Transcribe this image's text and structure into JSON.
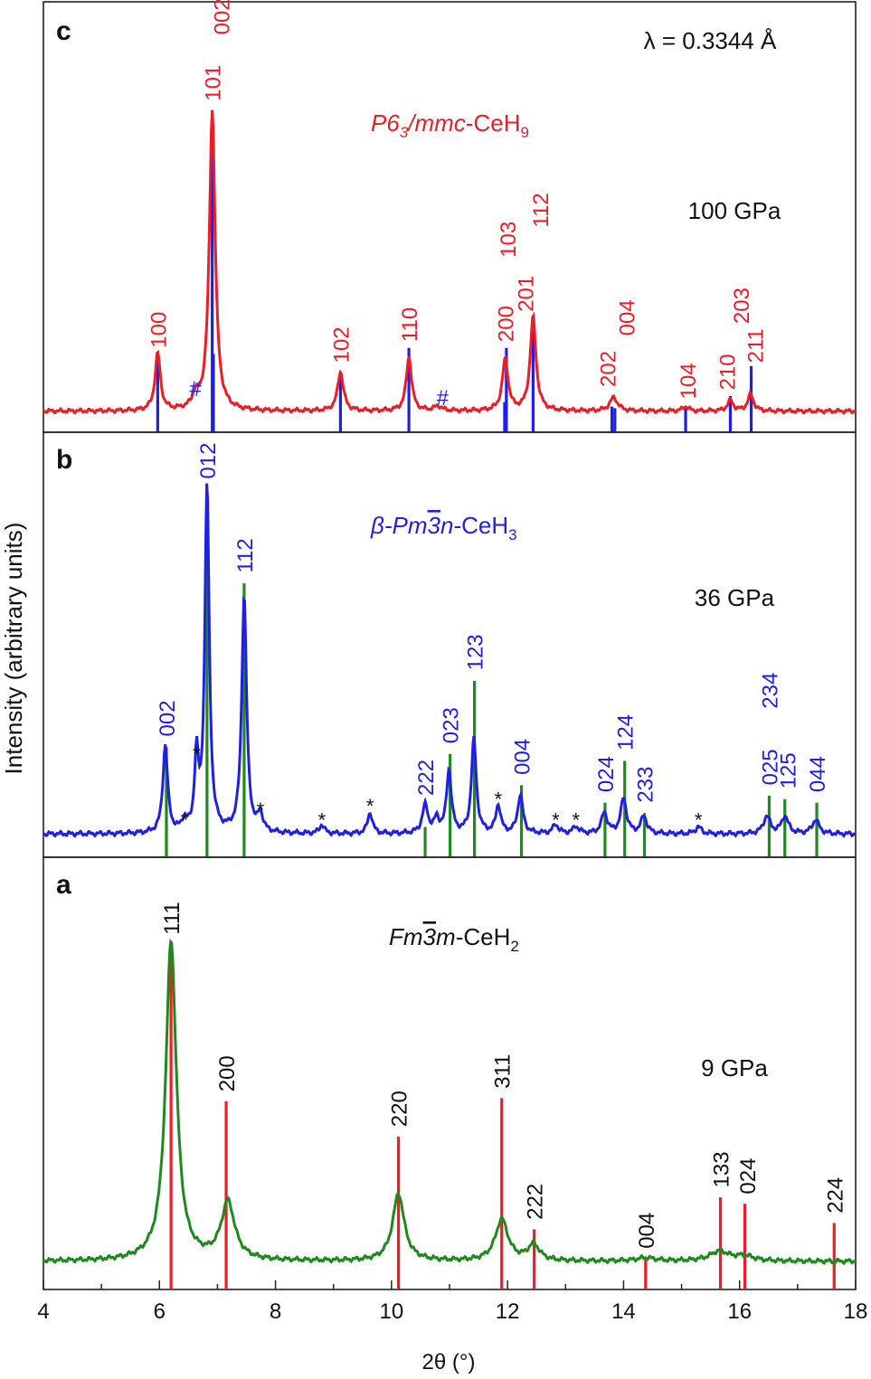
{
  "chart_data": {
    "type": "line",
    "xlabel": "2θ (°)",
    "ylabel": "Intensity (arbitrary units)",
    "xlim": [
      4,
      18
    ],
    "xticks": [
      "4",
      "6",
      "8",
      "10",
      "12",
      "14",
      "16",
      "18"
    ],
    "wavelength_label": "λ = 0.3344 Å",
    "colors": {
      "red": "#ee1c24",
      "blue": "#1f1fe6",
      "green": "#1e8a1e",
      "black": "#111111"
    },
    "panels": [
      {
        "id": "c",
        "panel_label": "c",
        "phase_label": {
          "pre": "P6",
          "sub": "3",
          "post": "/mmc",
          "tail": "-CeH",
          "tail_sub": "9"
        },
        "phase_color": "#ee1c24",
        "pressure": "100 GPa",
        "curve_color": "#ee1c24",
        "stick_color": "#1f1fe6",
        "hkl_color": "#ee1c24",
        "ylim": [
          0,
          1.0
        ],
        "baseline": 0.01,
        "peaks": [
          {
            "x": 5.97,
            "h": 0.19,
            "w": 0.055
          },
          {
            "x": 6.62,
            "h": 0.04,
            "w": 0.06
          },
          {
            "x": 6.91,
            "h": 1.0,
            "w": 0.06
          },
          {
            "x": 9.12,
            "h": 0.13,
            "w": 0.06
          },
          {
            "x": 10.3,
            "h": 0.18,
            "w": 0.055
          },
          {
            "x": 10.8,
            "h": 0.015,
            "w": 0.08
          },
          {
            "x": 11.96,
            "h": 0.17,
            "w": 0.06
          },
          {
            "x": 12.44,
            "h": 0.31,
            "w": 0.06
          },
          {
            "x": 13.83,
            "h": 0.045,
            "w": 0.08
          },
          {
            "x": 15.07,
            "h": 0.015,
            "w": 0.06
          },
          {
            "x": 15.84,
            "h": 0.035,
            "w": 0.06
          },
          {
            "x": 16.19,
            "h": 0.055,
            "w": 0.06
          }
        ],
        "sticks": [
          {
            "x": 5.97,
            "h": 0.19
          },
          {
            "x": 6.91,
            "h": 1.0
          },
          {
            "x": 6.93,
            "h": 0.2
          },
          {
            "x": 9.12,
            "h": 0.14
          },
          {
            "x": 10.3,
            "h": 0.22
          },
          {
            "x": 11.95,
            "h": 0.04
          },
          {
            "x": 11.98,
            "h": 0.22
          },
          {
            "x": 12.44,
            "h": 0.28
          },
          {
            "x": 13.8,
            "h": 0.025
          },
          {
            "x": 13.85,
            "h": 0.02
          },
          {
            "x": 15.07,
            "h": 0.025
          },
          {
            "x": 15.84,
            "h": 0.06
          },
          {
            "x": 16.2,
            "h": 0.16
          }
        ],
        "hkl": [
          {
            "text": "100",
            "x": 5.97,
            "y": 0.22
          },
          {
            "text": "101",
            "x": 6.91,
            "y": 1.04
          },
          {
            "text": "002",
            "x": 7.06,
            "y": 1.26
          },
          {
            "text": "102",
            "x": 9.12,
            "y": 0.17
          },
          {
            "text": "110",
            "x": 10.3,
            "y": 0.24
          },
          {
            "text": "200",
            "x": 11.96,
            "y": 0.24
          },
          {
            "text": "103",
            "x": 12.0,
            "y": 0.52
          },
          {
            "text": "201",
            "x": 12.3,
            "y": 0.34
          },
          {
            "text": "112",
            "x": 12.56,
            "y": 0.62
          },
          {
            "text": "202",
            "x": 13.72,
            "y": 0.09
          },
          {
            "text": "004",
            "x": 14.05,
            "y": 0.26
          },
          {
            "text": "104",
            "x": 15.1,
            "y": 0.05
          },
          {
            "text": "210",
            "x": 15.78,
            "y": 0.08
          },
          {
            "text": "203",
            "x": 16.02,
            "y": 0.3
          },
          {
            "text": "211",
            "x": 16.26,
            "y": 0.17
          }
        ],
        "impurity": [
          {
            "text": "#",
            "x": 6.62,
            "y": 0.06
          },
          {
            "text": "#",
            "x": 10.88,
            "y": 0.03
          }
        ]
      },
      {
        "id": "b",
        "panel_label": "b",
        "phase_label": {
          "pre": "β-Pm",
          "bar": "3",
          "post": "n",
          "tail": "-CeH",
          "tail_sub": "3"
        },
        "phase_color": "#1f1fe6",
        "pressure": "36 GPa",
        "curve_color": "#1f1fe6",
        "stick_color": "#1e8a1e",
        "hkl_color": "#1f1fe6",
        "ylim": [
          0,
          1.0
        ],
        "baseline": 0.02,
        "peaks": [
          {
            "x": 6.1,
            "h": 0.25,
            "w": 0.05
          },
          {
            "x": 6.43,
            "h": 0.03,
            "w": 0.05
          },
          {
            "x": 6.64,
            "h": 0.21,
            "w": 0.04
          },
          {
            "x": 6.82,
            "h": 1.0,
            "w": 0.045
          },
          {
            "x": 7.46,
            "h": 0.68,
            "w": 0.05
          },
          {
            "x": 7.74,
            "h": 0.05,
            "w": 0.05
          },
          {
            "x": 8.8,
            "h": 0.025,
            "w": 0.05
          },
          {
            "x": 9.63,
            "h": 0.06,
            "w": 0.05
          },
          {
            "x": 10.58,
            "h": 0.08,
            "w": 0.06
          },
          {
            "x": 10.78,
            "h": 0.04,
            "w": 0.05
          },
          {
            "x": 10.99,
            "h": 0.18,
            "w": 0.05
          },
          {
            "x": 11.42,
            "h": 0.27,
            "w": 0.05
          },
          {
            "x": 11.84,
            "h": 0.08,
            "w": 0.05
          },
          {
            "x": 12.22,
            "h": 0.11,
            "w": 0.055
          },
          {
            "x": 12.83,
            "h": 0.025,
            "w": 0.06
          },
          {
            "x": 13.18,
            "h": 0.02,
            "w": 0.06
          },
          {
            "x": 13.67,
            "h": 0.06,
            "w": 0.06
          },
          {
            "x": 14.0,
            "h": 0.1,
            "w": 0.06
          },
          {
            "x": 14.35,
            "h": 0.05,
            "w": 0.06
          },
          {
            "x": 15.29,
            "h": 0.02,
            "w": 0.06
          },
          {
            "x": 16.47,
            "h": 0.05,
            "w": 0.07
          },
          {
            "x": 16.78,
            "h": 0.05,
            "w": 0.07
          },
          {
            "x": 17.31,
            "h": 0.04,
            "w": 0.07
          }
        ],
        "sticks": [
          {
            "x": 6.12,
            "h": 0.27
          },
          {
            "x": 6.82,
            "h": 0.91
          },
          {
            "x": 7.46,
            "h": 0.74
          },
          {
            "x": 10.58,
            "h": 0.04
          },
          {
            "x": 11.01,
            "h": 0.25
          },
          {
            "x": 11.43,
            "h": 0.46
          },
          {
            "x": 12.24,
            "h": 0.16
          },
          {
            "x": 13.68,
            "h": 0.11
          },
          {
            "x": 14.02,
            "h": 0.23
          },
          {
            "x": 14.36,
            "h": 0.08
          },
          {
            "x": 16.51,
            "h": 0.13
          },
          {
            "x": 16.78,
            "h": 0.12
          },
          {
            "x": 17.33,
            "h": 0.11
          }
        ],
        "hkl": [
          {
            "text": "002",
            "x": 6.12,
            "y": 0.3
          },
          {
            "text": "012",
            "x": 6.82,
            "y": 1.04
          },
          {
            "text": "112",
            "x": 7.46,
            "y": 0.77
          },
          {
            "text": "222",
            "x": 10.58,
            "y": 0.13
          },
          {
            "text": "023",
            "x": 11.01,
            "y": 0.28
          },
          {
            "text": "123",
            "x": 11.43,
            "y": 0.49
          },
          {
            "text": "004",
            "x": 12.24,
            "y": 0.19
          },
          {
            "text": "024",
            "x": 13.68,
            "y": 0.14
          },
          {
            "text": "124",
            "x": 14.02,
            "y": 0.26
          },
          {
            "text": "233",
            "x": 14.36,
            "y": 0.11
          },
          {
            "text": "025",
            "x": 16.51,
            "y": 0.16
          },
          {
            "text": "234",
            "x": 16.51,
            "y": 0.38
          },
          {
            "text": "125",
            "x": 16.82,
            "y": 0.15
          },
          {
            "text": "044",
            "x": 17.33,
            "y": 0.14
          }
        ],
        "impurity": [
          {
            "text": "*",
            "x": 6.43,
            "y": 0.04
          },
          {
            "text": "*",
            "x": 6.64,
            "y": 0.23
          },
          {
            "text": "*",
            "x": 7.74,
            "y": 0.07
          },
          {
            "text": "*",
            "x": 8.8,
            "y": 0.04
          },
          {
            "text": "*",
            "x": 9.63,
            "y": 0.08
          },
          {
            "text": "*",
            "x": 11.84,
            "y": 0.1
          },
          {
            "text": "*",
            "x": 12.83,
            "y": 0.04
          },
          {
            "text": "*",
            "x": 13.18,
            "y": 0.04
          },
          {
            "text": "*",
            "x": 15.29,
            "y": 0.04
          }
        ]
      },
      {
        "id": "a",
        "panel_label": "a",
        "phase_label": {
          "pre": "Fm",
          "bar": "3",
          "post": "m",
          "tail": "-CeH",
          "tail_sub": "2"
        },
        "phase_color": "#111111",
        "pressure": "9 GPa",
        "curve_color": "#1e8a1e",
        "stick_color": "#ee1c24",
        "hkl_color": "#111111",
        "ylim": [
          0,
          1.0
        ],
        "baseline": 0.02,
        "peaks": [
          {
            "x": 6.2,
            "h": 1.0,
            "w": 0.11
          },
          {
            "x": 7.18,
            "h": 0.18,
            "w": 0.14
          },
          {
            "x": 10.12,
            "h": 0.21,
            "w": 0.12
          },
          {
            "x": 11.9,
            "h": 0.13,
            "w": 0.13
          },
          {
            "x": 12.45,
            "h": 0.05,
            "w": 0.12
          },
          {
            "x": 14.38,
            "h": 0.01,
            "w": 0.2
          },
          {
            "x": 15.65,
            "h": 0.03,
            "w": 0.2
          },
          {
            "x": 16.08,
            "h": 0.015,
            "w": 0.2
          }
        ],
        "sticks": [
          {
            "x": 6.2,
            "h": 1.0
          },
          {
            "x": 7.15,
            "h": 0.52
          },
          {
            "x": 10.12,
            "h": 0.41
          },
          {
            "x": 11.9,
            "h": 0.53
          },
          {
            "x": 12.46,
            "h": 0.12
          },
          {
            "x": 14.38,
            "h": 0.03
          },
          {
            "x": 15.67,
            "h": 0.22
          },
          {
            "x": 16.09,
            "h": 0.2
          },
          {
            "x": 17.63,
            "h": 0.14
          }
        ],
        "hkl": [
          {
            "text": "111",
            "x": 6.2,
            "y": 1.04
          },
          {
            "text": "200",
            "x": 7.15,
            "y": 0.55
          },
          {
            "text": "220",
            "x": 10.12,
            "y": 0.44
          },
          {
            "text": "311",
            "x": 11.9,
            "y": 0.56
          },
          {
            "text": "222",
            "x": 12.46,
            "y": 0.15
          },
          {
            "text": "004",
            "x": 14.38,
            "y": 0.06
          },
          {
            "text": "133",
            "x": 15.67,
            "y": 0.25
          },
          {
            "text": "024",
            "x": 16.13,
            "y": 0.23
          },
          {
            "text": "224",
            "x": 17.63,
            "y": 0.17
          }
        ],
        "impurity": []
      }
    ]
  }
}
